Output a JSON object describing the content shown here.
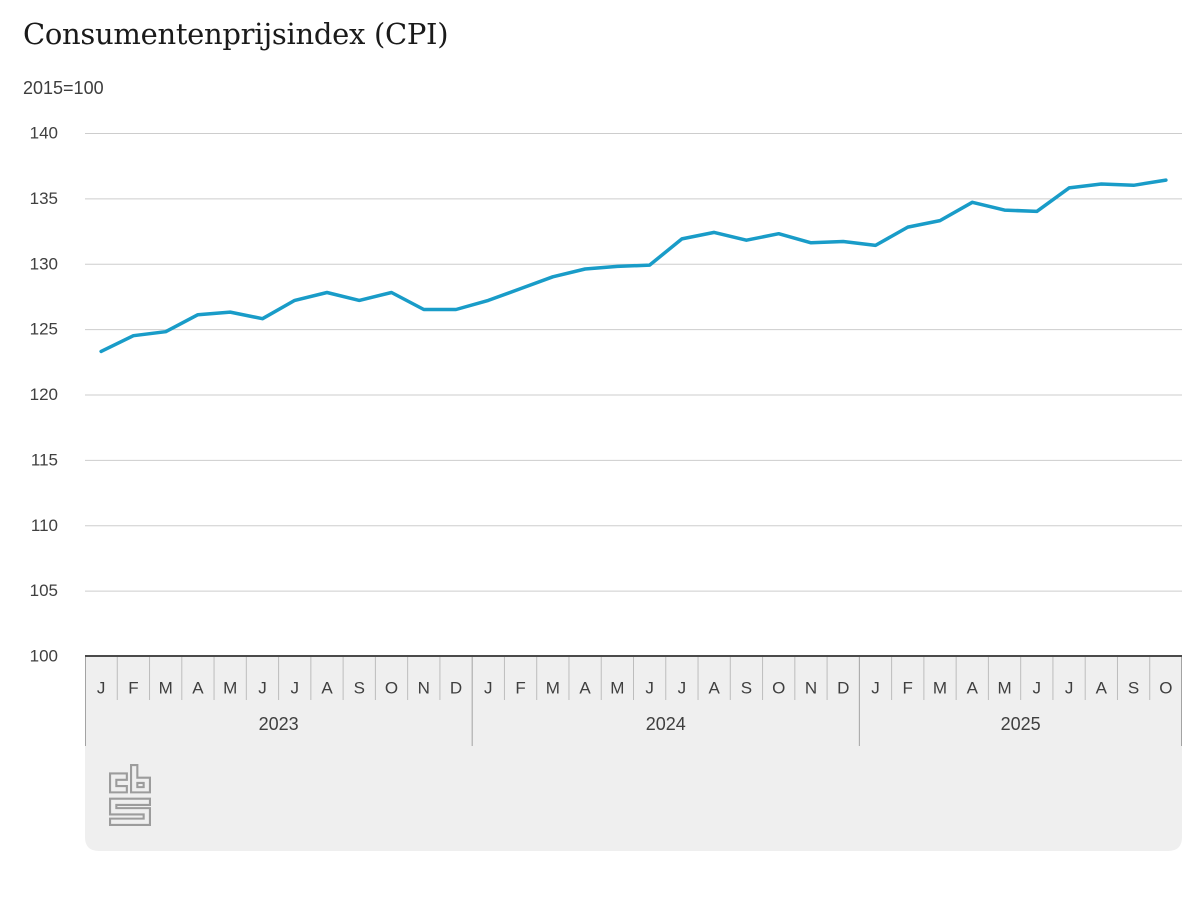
{
  "header": {
    "title": "Consumentenprijsindex (CPI)",
    "subtitle": "2015=100"
  },
  "colors": {
    "line": "#199cc8",
    "grid": "#cdcdcd",
    "axis": "#4a4a4a",
    "panel": "#efefef",
    "sep_month": "#bdbdbd",
    "sep_year": "#a3a3a3",
    "text": "#3f3f3f",
    "logo": "#9c9c9c"
  },
  "logo": {
    "name": "cbs-logo"
  },
  "chart_data": {
    "type": "line",
    "title": "Consumentenprijsindex (CPI)",
    "subtitle": "2015=100",
    "ylabel": "",
    "xlabel": "",
    "ylim": [
      100,
      140
    ],
    "yticks": [
      100,
      105,
      110,
      115,
      120,
      125,
      130,
      135,
      140
    ],
    "grid": true,
    "legend_position": "none",
    "years": [
      {
        "label": "2023",
        "months": [
          "J",
          "F",
          "M",
          "A",
          "M",
          "J",
          "J",
          "A",
          "S",
          "O",
          "N",
          "D"
        ]
      },
      {
        "label": "2024",
        "months": [
          "J",
          "F",
          "M",
          "A",
          "M",
          "J",
          "J",
          "A",
          "S",
          "O",
          "N",
          "D"
        ]
      },
      {
        "label": "2025",
        "months": [
          "J",
          "F",
          "M",
          "A",
          "M",
          "J",
          "J",
          "A",
          "S",
          "O"
        ]
      }
    ],
    "series": [
      {
        "name": "CPI (2015=100)",
        "values": [
          123.3,
          124.5,
          124.8,
          126.1,
          126.3,
          125.8,
          127.2,
          127.8,
          127.2,
          127.8,
          126.5,
          126.5,
          127.2,
          128.1,
          129.0,
          129.6,
          129.8,
          129.9,
          131.9,
          132.4,
          131.8,
          132.3,
          131.6,
          131.7,
          131.4,
          132.8,
          133.3,
          134.7,
          134.1,
          134.0,
          135.8,
          136.1,
          136.0,
          136.4
        ]
      }
    ]
  }
}
